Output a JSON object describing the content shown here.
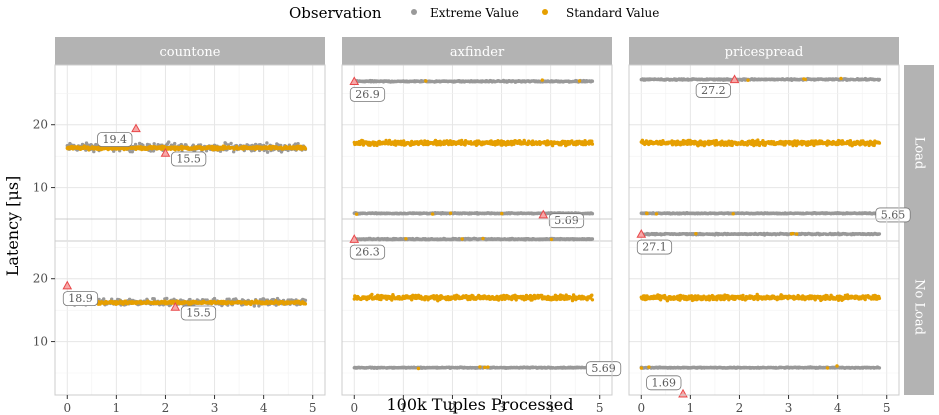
{
  "chart_data": {
    "type": "scatter",
    "xlabel": "100k Tuples Processed",
    "ylabel": "Latency [μs]",
    "xlim": [
      -0.25,
      5.25
    ],
    "ylim": [
      1.5,
      29.5
    ],
    "x_ticks": [
      "0",
      "1",
      "2",
      "3",
      "4",
      "5"
    ],
    "x_tick_values": [
      0,
      1,
      2,
      3,
      4,
      5
    ],
    "y_ticks": [
      "10",
      "20"
    ],
    "y_tick_values": [
      10,
      20
    ],
    "legend": {
      "title": "Observation",
      "position": "top",
      "entries": [
        {
          "label": "Extreme Value",
          "color": "#999999"
        },
        {
          "label": "Standard Value",
          "color": "#E69F00"
        }
      ]
    },
    "column_facets": [
      "countone",
      "axfinder",
      "pricespread"
    ],
    "row_facets": [
      "Load",
      "No Load"
    ],
    "colors": {
      "extreme": "#999999",
      "standard": "#E69F00",
      "max_marker": "#E8484A",
      "strip_bg": "#b3b3b3",
      "panel_border": "#cccccc",
      "grid": "#e6e6e6"
    },
    "panels": [
      {
        "column": "countone",
        "row": "Load",
        "bands": [
          {
            "kind": "extreme",
            "y": 16.4,
            "spread": 0.9
          },
          {
            "kind": "standard",
            "y": 16.3,
            "spread": 0.35
          }
        ],
        "max": {
          "x": 1.4,
          "y": 19.4,
          "label": "19.4"
        },
        "min": {
          "x": 2.0,
          "y": 15.5,
          "label": "15.5"
        }
      },
      {
        "column": "axfinder",
        "row": "Load",
        "bands": [
          {
            "kind": "extreme",
            "y": 26.9,
            "spread": 0.15
          },
          {
            "kind": "standard",
            "y": 17.1,
            "spread": 0.55
          },
          {
            "kind": "extreme",
            "y": 5.9,
            "spread": 0.12
          }
        ],
        "max": {
          "x": 0.0,
          "y": 26.9,
          "label": "26.9"
        },
        "min": {
          "x": 3.85,
          "y": 5.69,
          "label": "5.69"
        }
      },
      {
        "column": "pricespread",
        "row": "Load",
        "bands": [
          {
            "kind": "extreme",
            "y": 27.2,
            "spread": 0.15
          },
          {
            "kind": "standard",
            "y": 17.1,
            "spread": 0.55
          },
          {
            "kind": "extreme",
            "y": 5.9,
            "spread": 0.12
          }
        ],
        "max": {
          "x": 1.9,
          "y": 27.2,
          "label": "27.2"
        },
        "min": {
          "x": 4.9,
          "y": 5.65,
          "label": "5.65"
        }
      },
      {
        "column": "countone",
        "row": "No Load",
        "bands": [
          {
            "kind": "extreme",
            "y": 16.3,
            "spread": 0.8
          },
          {
            "kind": "standard",
            "y": 16.2,
            "spread": 0.3
          }
        ],
        "max": {
          "x": 0.0,
          "y": 18.9,
          "label": "18.9"
        },
        "min": {
          "x": 2.2,
          "y": 15.5,
          "label": "15.5"
        }
      },
      {
        "column": "axfinder",
        "row": "No Load",
        "bands": [
          {
            "kind": "extreme",
            "y": 26.3,
            "spread": 0.15
          },
          {
            "kind": "standard",
            "y": 17.0,
            "spread": 0.55
          },
          {
            "kind": "extreme",
            "y": 5.85,
            "spread": 0.12
          }
        ],
        "max": {
          "x": 0.0,
          "y": 26.3,
          "label": "26.3"
        },
        "min": {
          "x": 4.85,
          "y": 5.69,
          "label": "5.69"
        }
      },
      {
        "column": "pricespread",
        "row": "No Load",
        "bands": [
          {
            "kind": "extreme",
            "y": 27.1,
            "spread": 0.15
          },
          {
            "kind": "standard",
            "y": 17.0,
            "spread": 0.55
          },
          {
            "kind": "extreme",
            "y": 5.85,
            "spread": 0.12
          }
        ],
        "max": {
          "x": 0.0,
          "y": 27.1,
          "label": "27.1"
        },
        "min": {
          "x": 0.85,
          "y": 1.69,
          "label": "1.69"
        }
      }
    ]
  }
}
